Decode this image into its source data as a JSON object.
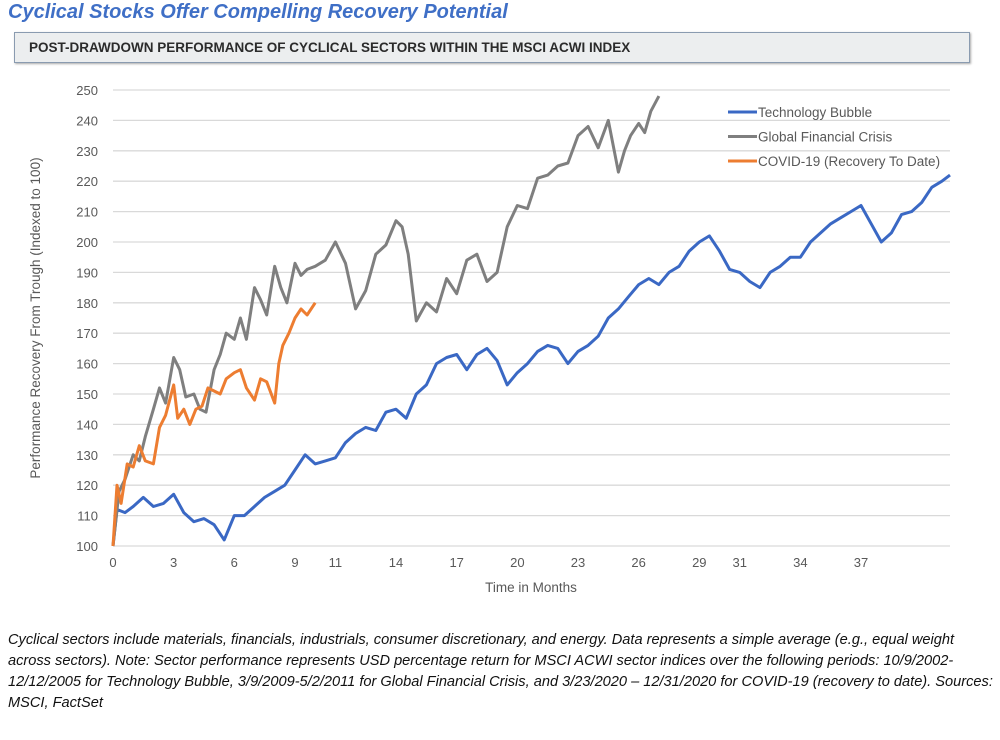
{
  "title": "Cyclical Stocks Offer Compelling Recovery Potential",
  "subheader": "POST-DRAWDOWN PERFORMANCE OF CYCLICAL SECTORS WITHIN THE MSCI ACWI INDEX",
  "caption": "Cyclical sectors include materials, financials, industrials, consumer discretionary, and energy. Data represents a simple average (e.g., equal weight across sectors). Note: Sector performance represents USD percentage return for MSCI ACWI sector indices over the following periods: 10/9/2002-12/12/2005 for Technology Bubble, 3/9/2009-5/2/2011 for Global Financial Crisis, and 3/23/2020 – 12/31/2020 for COVID-19 (recovery to date). Sources: MSCI, FactSet",
  "chart_data": {
    "type": "line",
    "xlabel": "Time in Months",
    "ylabel": "Performance Recovery From Trough (Indexed to 100)",
    "xlim": [
      0,
      41.4
    ],
    "ylim": [
      100,
      250
    ],
    "xticks": [
      0,
      3,
      6,
      9,
      11,
      14,
      17,
      20,
      23,
      26,
      29,
      31,
      34,
      37
    ],
    "xtick_labels": [
      "0",
      "3",
      "6",
      "9",
      "11",
      "14",
      "17",
      "20",
      "23",
      "26",
      "29",
      "31",
      "34",
      "37"
    ],
    "yticks": [
      100,
      110,
      120,
      130,
      140,
      150,
      160,
      170,
      180,
      190,
      200,
      210,
      220,
      230,
      240,
      250
    ],
    "grid": "horizontal",
    "legend": "top-right",
    "series": [
      {
        "name": "Technology Bubble",
        "color": "#3a68c4",
        "x": [
          0,
          0.2,
          0.6,
          1,
          1.5,
          2,
          2.5,
          3,
          3.5,
          4,
          4.5,
          5,
          5.5,
          6,
          6.5,
          7,
          7.5,
          8,
          8.5,
          9,
          9.5,
          10,
          10.5,
          11,
          11.5,
          12,
          12.5,
          13,
          13.5,
          14,
          14.5,
          15,
          15.5,
          16,
          16.5,
          17,
          17.5,
          18,
          18.5,
          19,
          19.5,
          20,
          20.5,
          21,
          21.5,
          22,
          22.5,
          23,
          23.5,
          24,
          24.5,
          25,
          25.5,
          26,
          26.5,
          27,
          27.5,
          28,
          28.5,
          29,
          29.5,
          30,
          30.5,
          31,
          31.5,
          32,
          32.5,
          33,
          33.5,
          34,
          34.5,
          35,
          35.5,
          36,
          36.5,
          37,
          37.5,
          38,
          38.5,
          39,
          39.5,
          40,
          40.5,
          41,
          41.4
        ],
        "y": [
          100,
          112,
          111,
          113,
          116,
          113,
          114,
          117,
          111,
          108,
          109,
          107,
          102,
          110,
          110,
          113,
          116,
          118,
          120,
          125,
          130,
          127,
          128,
          129,
          134,
          137,
          139,
          138,
          144,
          145,
          142,
          150,
          153,
          160,
          162,
          163,
          158,
          163,
          165,
          161,
          153,
          157,
          160,
          164,
          166,
          165,
          160,
          164,
          166,
          169,
          175,
          178,
          182,
          186,
          188,
          186,
          190,
          192,
          197,
          200,
          202,
          197,
          191,
          190,
          187,
          185,
          190,
          192,
          195,
          195,
          200,
          203,
          206,
          208,
          210,
          212,
          206,
          200,
          203,
          209,
          210,
          213,
          218,
          220,
          222
        ]
      },
      {
        "name": "Global Financial Crisis",
        "color": "#7f7f7f",
        "x": [
          0,
          0.3,
          0.6,
          1,
          1.3,
          1.6,
          2,
          2.3,
          2.6,
          3,
          3.3,
          3.6,
          4,
          4.3,
          4.6,
          5,
          5.3,
          5.6,
          6,
          6.3,
          6.6,
          7,
          7.3,
          7.6,
          8,
          8.3,
          8.6,
          9,
          9.3,
          9.6,
          10,
          10.5,
          11,
          11.5,
          12,
          12.5,
          13,
          13.5,
          14,
          14.3,
          14.6,
          15,
          15.5,
          16,
          16.5,
          17,
          17.5,
          18,
          18.5,
          19,
          19.5,
          20,
          20.5,
          21,
          21.5,
          22,
          22.5,
          23,
          23.5,
          24,
          24.5,
          25,
          25.3,
          25.6,
          26,
          26.3,
          26.6,
          27
        ],
        "y": [
          100,
          118,
          122,
          130,
          128,
          136,
          145,
          152,
          147,
          162,
          158,
          149,
          150,
          145,
          144,
          158,
          163,
          170,
          168,
          175,
          168,
          185,
          181,
          176,
          192,
          185,
          180,
          193,
          189,
          191,
          192,
          194,
          200,
          193,
          178,
          184,
          196,
          199,
          207,
          205,
          196,
          174,
          180,
          177,
          188,
          183,
          194,
          196,
          187,
          190,
          205,
          212,
          211,
          221,
          222,
          225,
          226,
          235,
          238,
          231,
          240,
          223,
          230,
          235,
          239,
          236,
          243,
          248
        ]
      },
      {
        "name": "COVID-19 (Recovery To Date)",
        "color": "#ed7d31",
        "x": [
          0,
          0.2,
          0.4,
          0.7,
          1,
          1.3,
          1.6,
          2,
          2.3,
          2.6,
          3,
          3.2,
          3.5,
          3.8,
          4.1,
          4.4,
          4.7,
          5,
          5.3,
          5.6,
          6,
          6.3,
          6.6,
          7,
          7.3,
          7.6,
          8,
          8.2,
          8.4,
          8.7,
          9,
          9.3,
          9.6,
          10
        ],
        "y": [
          100,
          120,
          114,
          127,
          126,
          133,
          128,
          127,
          139,
          143,
          153,
          142,
          145,
          140,
          145,
          146,
          152,
          151,
          150,
          155,
          157,
          158,
          152,
          148,
          155,
          154,
          147,
          160,
          166,
          170,
          175,
          178,
          176,
          180
        ]
      }
    ]
  }
}
